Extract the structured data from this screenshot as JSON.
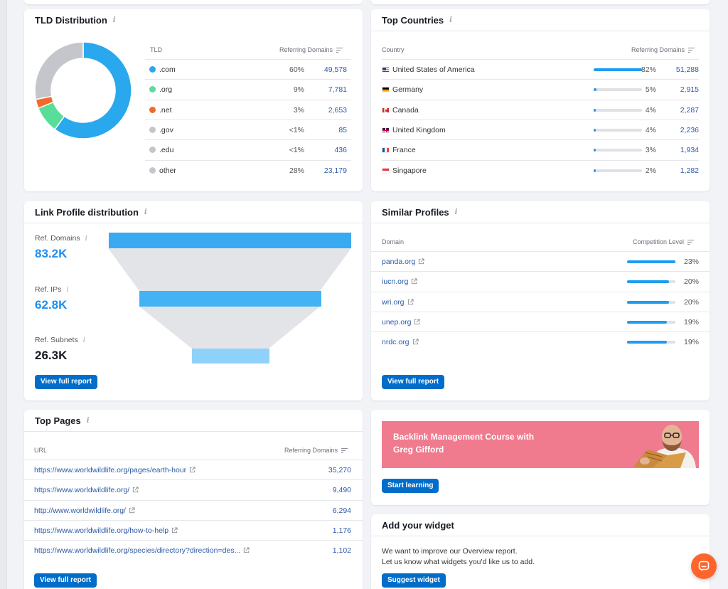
{
  "tld": {
    "title": "TLD Distribution",
    "col_tld": "TLD",
    "col_ref": "Referring Domains",
    "rows": [
      {
        "tld": ".com",
        "pct": "60%",
        "count": "49,578",
        "share": 60,
        "color": "#2aa8ee"
      },
      {
        "tld": ".org",
        "pct": "9%",
        "count": "7,781",
        "share": 9,
        "color": "#59dd9b"
      },
      {
        "tld": ".net",
        "pct": "3%",
        "count": "2,653",
        "share": 3,
        "color": "#f26a2b"
      },
      {
        "tld": ".gov",
        "pct": "<1%",
        "count": "85",
        "share": 0,
        "color": "#c4c6cc"
      },
      {
        "tld": ".edu",
        "pct": "<1%",
        "count": "436",
        "share": 0,
        "color": "#c4c6cc"
      },
      {
        "tld": "other",
        "pct": "28%",
        "count": "23,179",
        "share": 28,
        "color": "#c4c6cc"
      }
    ]
  },
  "countries": {
    "title": "Top Countries",
    "col_country": "Country",
    "col_ref": "Referring Domains",
    "rows": [
      {
        "name": "United States of America",
        "pct": "82%",
        "count": "51,288",
        "share": 82,
        "flag": "us"
      },
      {
        "name": "Germany",
        "pct": "5%",
        "count": "2,915",
        "share": 5,
        "flag": "de"
      },
      {
        "name": "Canada",
        "pct": "4%",
        "count": "2,287",
        "share": 4,
        "flag": "ca"
      },
      {
        "name": "United Kingdom",
        "pct": "4%",
        "count": "2,236",
        "share": 4,
        "flag": "gb"
      },
      {
        "name": "France",
        "pct": "3%",
        "count": "1,934",
        "share": 3,
        "flag": "fr"
      },
      {
        "name": "Singapore",
        "pct": "2%",
        "count": "1,282",
        "share": 2,
        "flag": "sg"
      }
    ]
  },
  "link_profile": {
    "title": "Link Profile distribution",
    "metrics": [
      {
        "label": "Ref. Domains",
        "value": "83.2K",
        "color": "#1d8ff0"
      },
      {
        "label": "Ref. IPs",
        "value": "62.8K",
        "color": "#1d8ff0"
      },
      {
        "label": "Ref. Subnets",
        "value": "26.3K",
        "color": "#171a22"
      }
    ],
    "button": "View full report"
  },
  "similar": {
    "title": "Similar Profiles",
    "col_domain": "Domain",
    "col_level": "Competition Level",
    "rows": [
      {
        "domain": "panda.org",
        "pct": "23%",
        "level": 23
      },
      {
        "domain": "iucn.org",
        "pct": "20%",
        "level": 20
      },
      {
        "domain": "wri.org",
        "pct": "20%",
        "level": 20
      },
      {
        "domain": "unep.org",
        "pct": "19%",
        "level": 19
      },
      {
        "domain": "nrdc.org",
        "pct": "19%",
        "level": 19
      }
    ],
    "button": "View full report"
  },
  "top_pages": {
    "title": "Top Pages",
    "col_url": "URL",
    "col_ref": "Referring Domains",
    "rows": [
      {
        "url": "https://www.worldwildlife.org/pages/earth-hour",
        "count": "35,270"
      },
      {
        "url": "https://www.worldwildlife.org/",
        "count": "9,490"
      },
      {
        "url": "http://www.worldwildlife.org/",
        "count": "6,294"
      },
      {
        "url": "https://www.worldwildlife.org/how-to-help",
        "count": "1,176"
      },
      {
        "url": "https://www.worldwildlife.org/species/directory?direction=des...",
        "count": "1,102"
      }
    ],
    "button": "View full report"
  },
  "course": {
    "banner_title": "Backlink Management Course with Greg Gifford",
    "button": "Start learning",
    "banner_color": "#f07b8e"
  },
  "widget": {
    "title": "Add your widget",
    "line1": "We want to improve our Overview report.",
    "line2": "Let us know what widgets you'd like us to add.",
    "button": "Suggest widget"
  },
  "colors": {
    "accent": "#1d9df1",
    "button": "#006dca",
    "link": "#2b5aa8",
    "chat": "#ff642d"
  }
}
